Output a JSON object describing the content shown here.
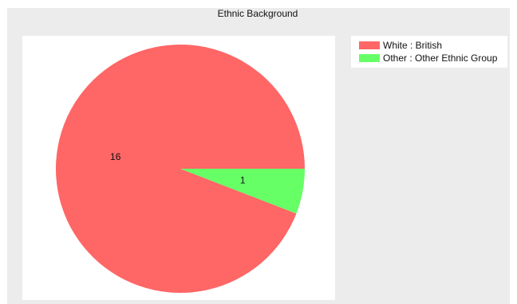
{
  "chart_data": {
    "type": "pie",
    "title": "Ethnic Background",
    "slices": [
      {
        "label": "White : British",
        "value": 16,
        "color": "#ff6666"
      },
      {
        "label": "Other : Other Ethnic Group",
        "value": 1,
        "color": "#66ff66"
      }
    ],
    "start_angle_deg": 0,
    "direction": "counterclockwise",
    "legend_position": "top-right"
  }
}
